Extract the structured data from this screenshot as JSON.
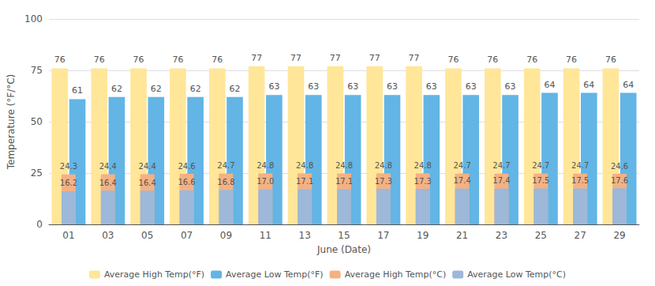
{
  "chart_data": {
    "type": "bar",
    "xlabel": "June (Date)",
    "ylabel": "Temperature (°F/°C)",
    "categories": [
      "01",
      "03",
      "05",
      "07",
      "09",
      "11",
      "13",
      "15",
      "17",
      "19",
      "21",
      "23",
      "25",
      "27",
      "29"
    ],
    "series": [
      {
        "name": "Average High Temp(°F)",
        "color": "#FFE699",
        "values": [
          76,
          76,
          76,
          76,
          76,
          77,
          77,
          77,
          77,
          77,
          76,
          76,
          76,
          76,
          76
        ]
      },
      {
        "name": "Average Low Temp(°F)",
        "color": "#62B5E5",
        "values": [
          61,
          62,
          62,
          62,
          62,
          63,
          63,
          63,
          63,
          63,
          63,
          63,
          64,
          64,
          64
        ]
      },
      {
        "name": "Average High Temp(°C)",
        "color": "#F4B183",
        "values": [
          24.3,
          24.4,
          24.4,
          24.6,
          24.7,
          24.8,
          24.8,
          24.8,
          24.8,
          24.8,
          24.7,
          24.7,
          24.7,
          24.7,
          24.6
        ],
        "value_labels": [
          "24.3",
          "24.4",
          "24.4",
          "24.6",
          "24.7",
          "24.8",
          "24.8",
          "24.8",
          "24.8",
          "24.8",
          "24.7",
          "24.7",
          "24.7",
          "24.7",
          "24.6"
        ]
      },
      {
        "name": "Average Low Temp(°C)",
        "color": "#9DB8D9",
        "values": [
          16.2,
          16.4,
          16.4,
          16.6,
          16.8,
          17.0,
          17.1,
          17.1,
          17.3,
          17.3,
          17.4,
          17.4,
          17.5,
          17.5,
          17.6
        ],
        "value_labels": [
          "16.2",
          "16.4",
          "16.4",
          "16.6",
          "16.8",
          "17.0",
          "17.1",
          "17.1",
          "17.3",
          "17.3",
          "17.4",
          "17.4",
          "17.5",
          "17.5",
          "17.6"
        ]
      }
    ],
    "ylim": [
      0,
      100
    ],
    "yticks": [
      0,
      25,
      50,
      75,
      100
    ],
    "grid": true,
    "legend": "bottom",
    "data_labels": true
  }
}
